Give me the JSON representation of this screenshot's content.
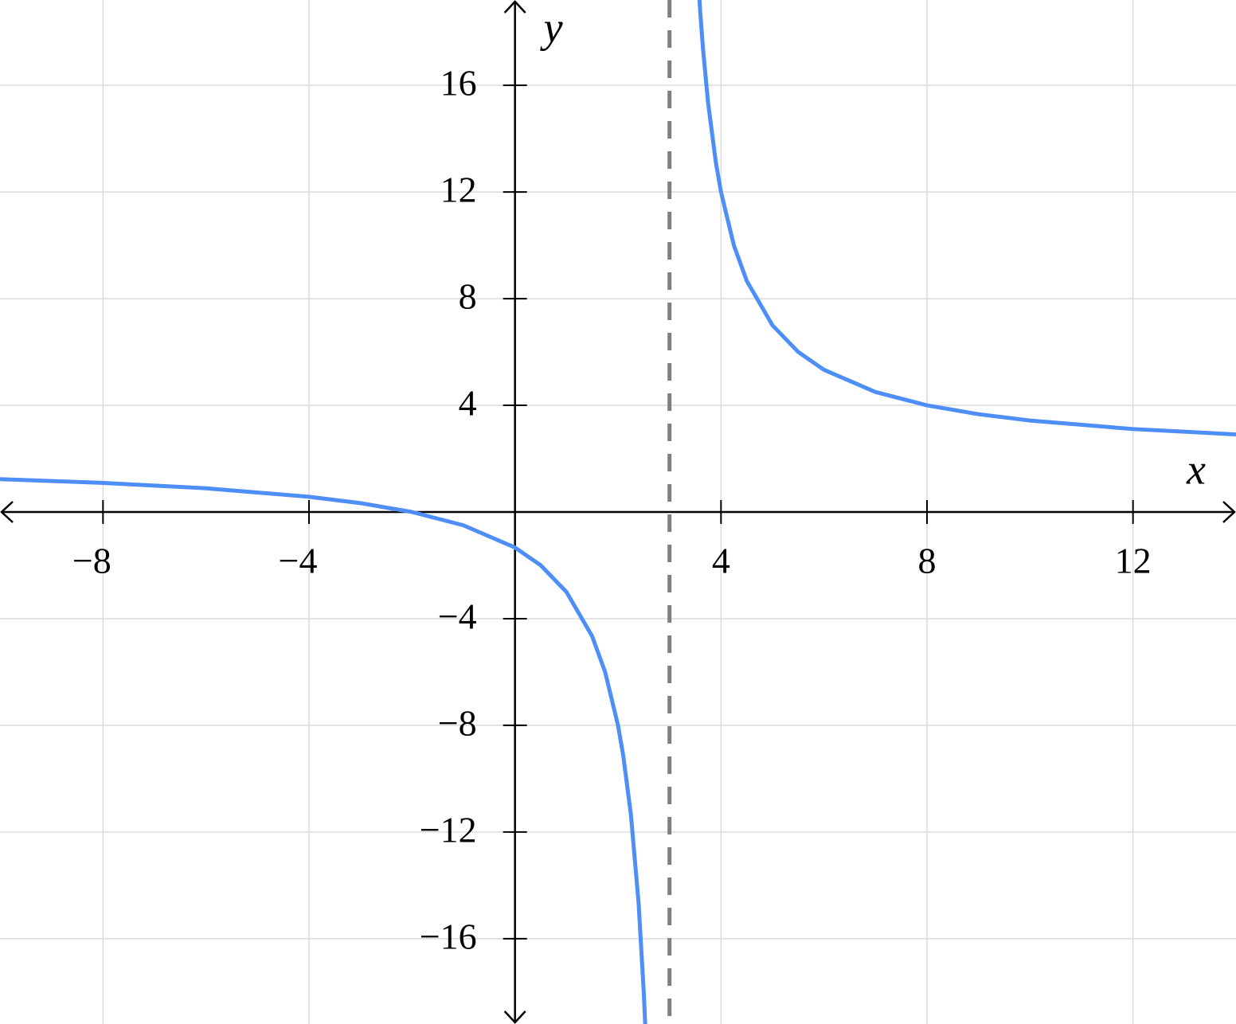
{
  "chart_data": {
    "type": "line",
    "x_label": "x",
    "y_label": "y",
    "x": [
      -10,
      -8,
      -6,
      -4,
      -3,
      -2,
      -1,
      0,
      0.5,
      1,
      1.5,
      1.75,
      2,
      2.1,
      2.25,
      2.4,
      2.5,
      2.53,
      3,
      3.55,
      3.6,
      3.65,
      3.75,
      3.9,
      4,
      4.25,
      4.5,
      5,
      5.5,
      6,
      7,
      8,
      9,
      10,
      12,
      14
    ],
    "series": [
      {
        "color": "#4d8ef7",
        "values": [
          1.231,
          1.091,
          0.889,
          0.571,
          0.333,
          0,
          -0.5,
          -1.333,
          -2,
          -3,
          -4.667,
          -6,
          -8,
          -9.111,
          -11.333,
          -14.667,
          -18,
          -19.277,
          null,
          20.18,
          18.667,
          17.385,
          15.333,
          13.111,
          12,
          10,
          8.667,
          7,
          6,
          5.333,
          4.5,
          4,
          3.667,
          3.429,
          3.111,
          2.909
        ]
      }
    ],
    "asymptote_x": 3,
    "asymptote_color": "#808080",
    "xlim": [
      -10,
      14
    ],
    "ylim": [
      -19.2,
      19.2
    ],
    "xticks": [
      {
        "value": -8,
        "label": "−8"
      },
      {
        "value": -4,
        "label": "−4"
      },
      4,
      8,
      12
    ],
    "yticks": [
      {
        "value": -16,
        "label": "−16"
      },
      {
        "value": -12,
        "label": "−12"
      },
      {
        "value": -8,
        "label": "−8"
      },
      {
        "value": -4,
        "label": "−4"
      },
      4,
      8,
      12,
      16
    ],
    "grid": true
  }
}
